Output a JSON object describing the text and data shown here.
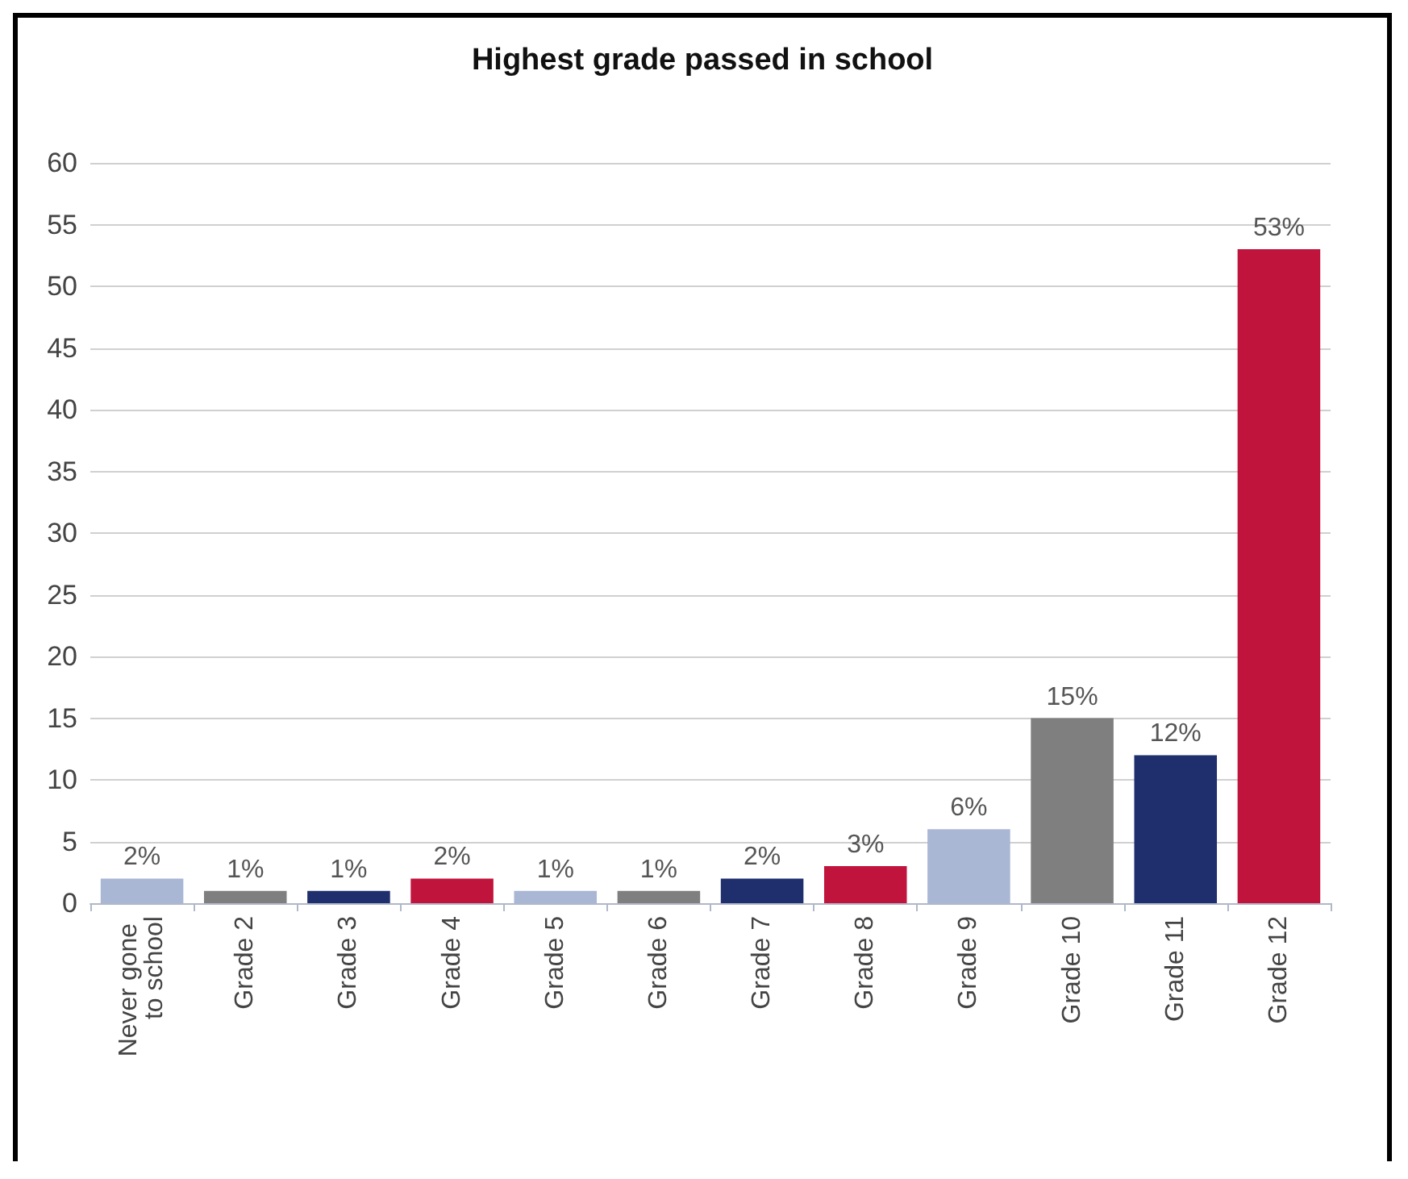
{
  "chart_data": {
    "type": "bar",
    "title": "Highest grade passed in school",
    "categories": [
      "Never gone to school",
      "Grade 2",
      "Grade 3",
      "Grade 4",
      "Grade 5",
      "Grade 6",
      "Grade 7",
      "Grade 8",
      "Grade 9",
      "Grade 10",
      "Grade 11",
      "Grade 12"
    ],
    "values": [
      2,
      1,
      1,
      2,
      1,
      1,
      2,
      3,
      6,
      15,
      12,
      53
    ],
    "value_labels": [
      "2%",
      "1%",
      "1%",
      "2%",
      "1%",
      "1%",
      "2%",
      "3%",
      "6%",
      "15%",
      "12%",
      "53%"
    ],
    "colors": [
      "#a9b6d4",
      "#7f7f7f",
      "#1f2f6e",
      "#c0143c",
      "#a9b6d4",
      "#7f7f7f",
      "#1f2f6e",
      "#c0143c",
      "#a9b6d4",
      "#7f7f7f",
      "#1f2f6e",
      "#c0143c"
    ],
    "ylim": [
      0,
      60
    ],
    "yticks": [
      0,
      5,
      10,
      15,
      20,
      25,
      30,
      35,
      40,
      45,
      50,
      55,
      60
    ],
    "grid": "y"
  }
}
